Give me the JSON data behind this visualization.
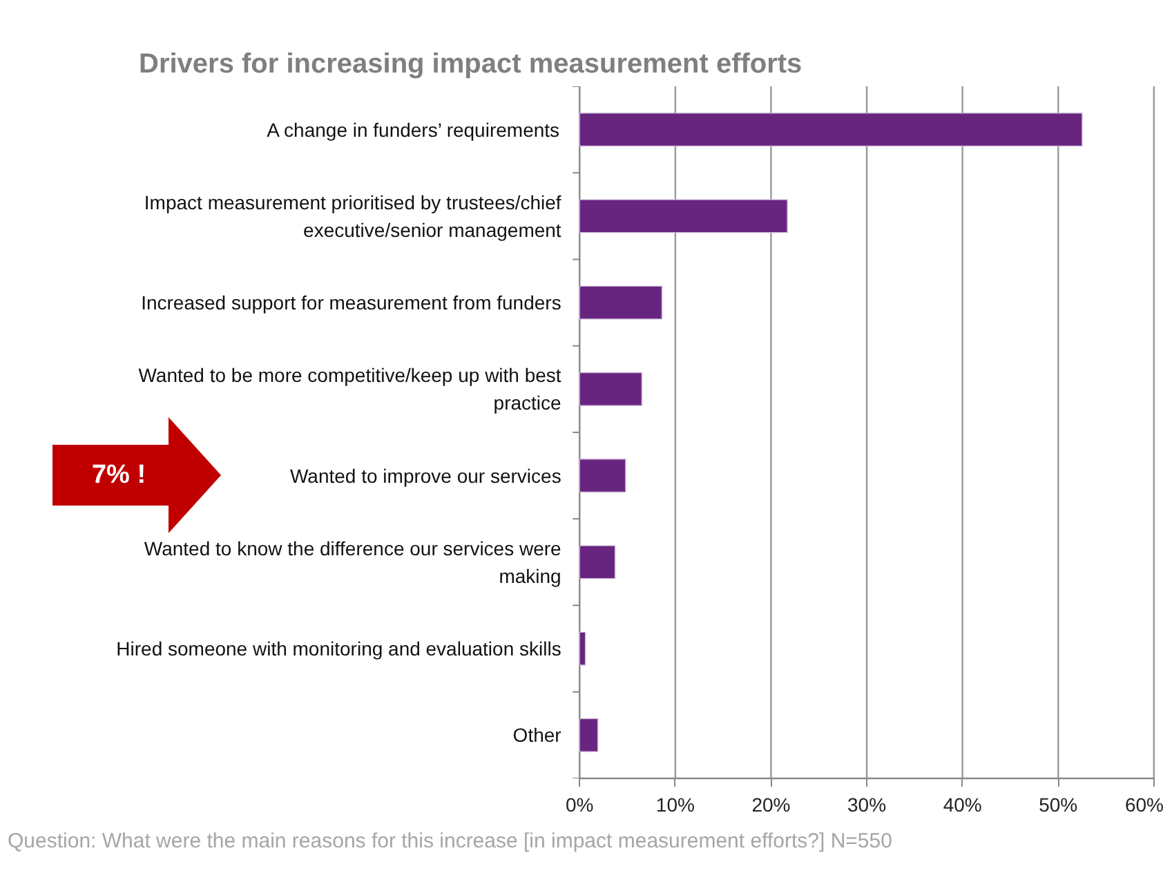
{
  "chart_data": {
    "type": "bar",
    "orientation": "horizontal",
    "title": "Drivers for increasing impact measurement efforts",
    "categories": [
      "A change in funders’ requirements",
      "Impact measurement prioritised by trustees/chief executive/senior management",
      "Increased support for measurement from funders",
      "Wanted to be more competitive/keep up with best practice",
      "Wanted to improve our services",
      "Wanted to know the difference our services were making",
      "Hired someone with monitoring and evaluation skills",
      "Other"
    ],
    "values": [
      52.5,
      21.7,
      8.6,
      6.5,
      4.8,
      3.7,
      0.6,
      1.9
    ],
    "color": "#68257f",
    "xlim": [
      0,
      60
    ],
    "xticks": [
      {
        "value": 0,
        "label": "0%"
      },
      {
        "value": 10,
        "label": "10%"
      },
      {
        "value": 20,
        "label": "20%"
      },
      {
        "value": 30,
        "label": "30%"
      },
      {
        "value": 40,
        "label": "40%"
      },
      {
        "value": 50,
        "label": "50%"
      },
      {
        "value": 60,
        "label": "60%"
      }
    ],
    "grid": "x",
    "annotations": [
      "7% !",
      "Question: What were the main reasons for this increase [in impact measurement efforts?] N=550"
    ]
  }
}
